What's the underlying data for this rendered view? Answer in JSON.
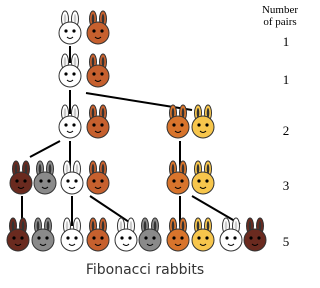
{
  "header": "Number of pairs",
  "counts": [
    "1",
    "1",
    "2",
    "3",
    "5"
  ],
  "caption": "Fibonacci rabbits"
}
